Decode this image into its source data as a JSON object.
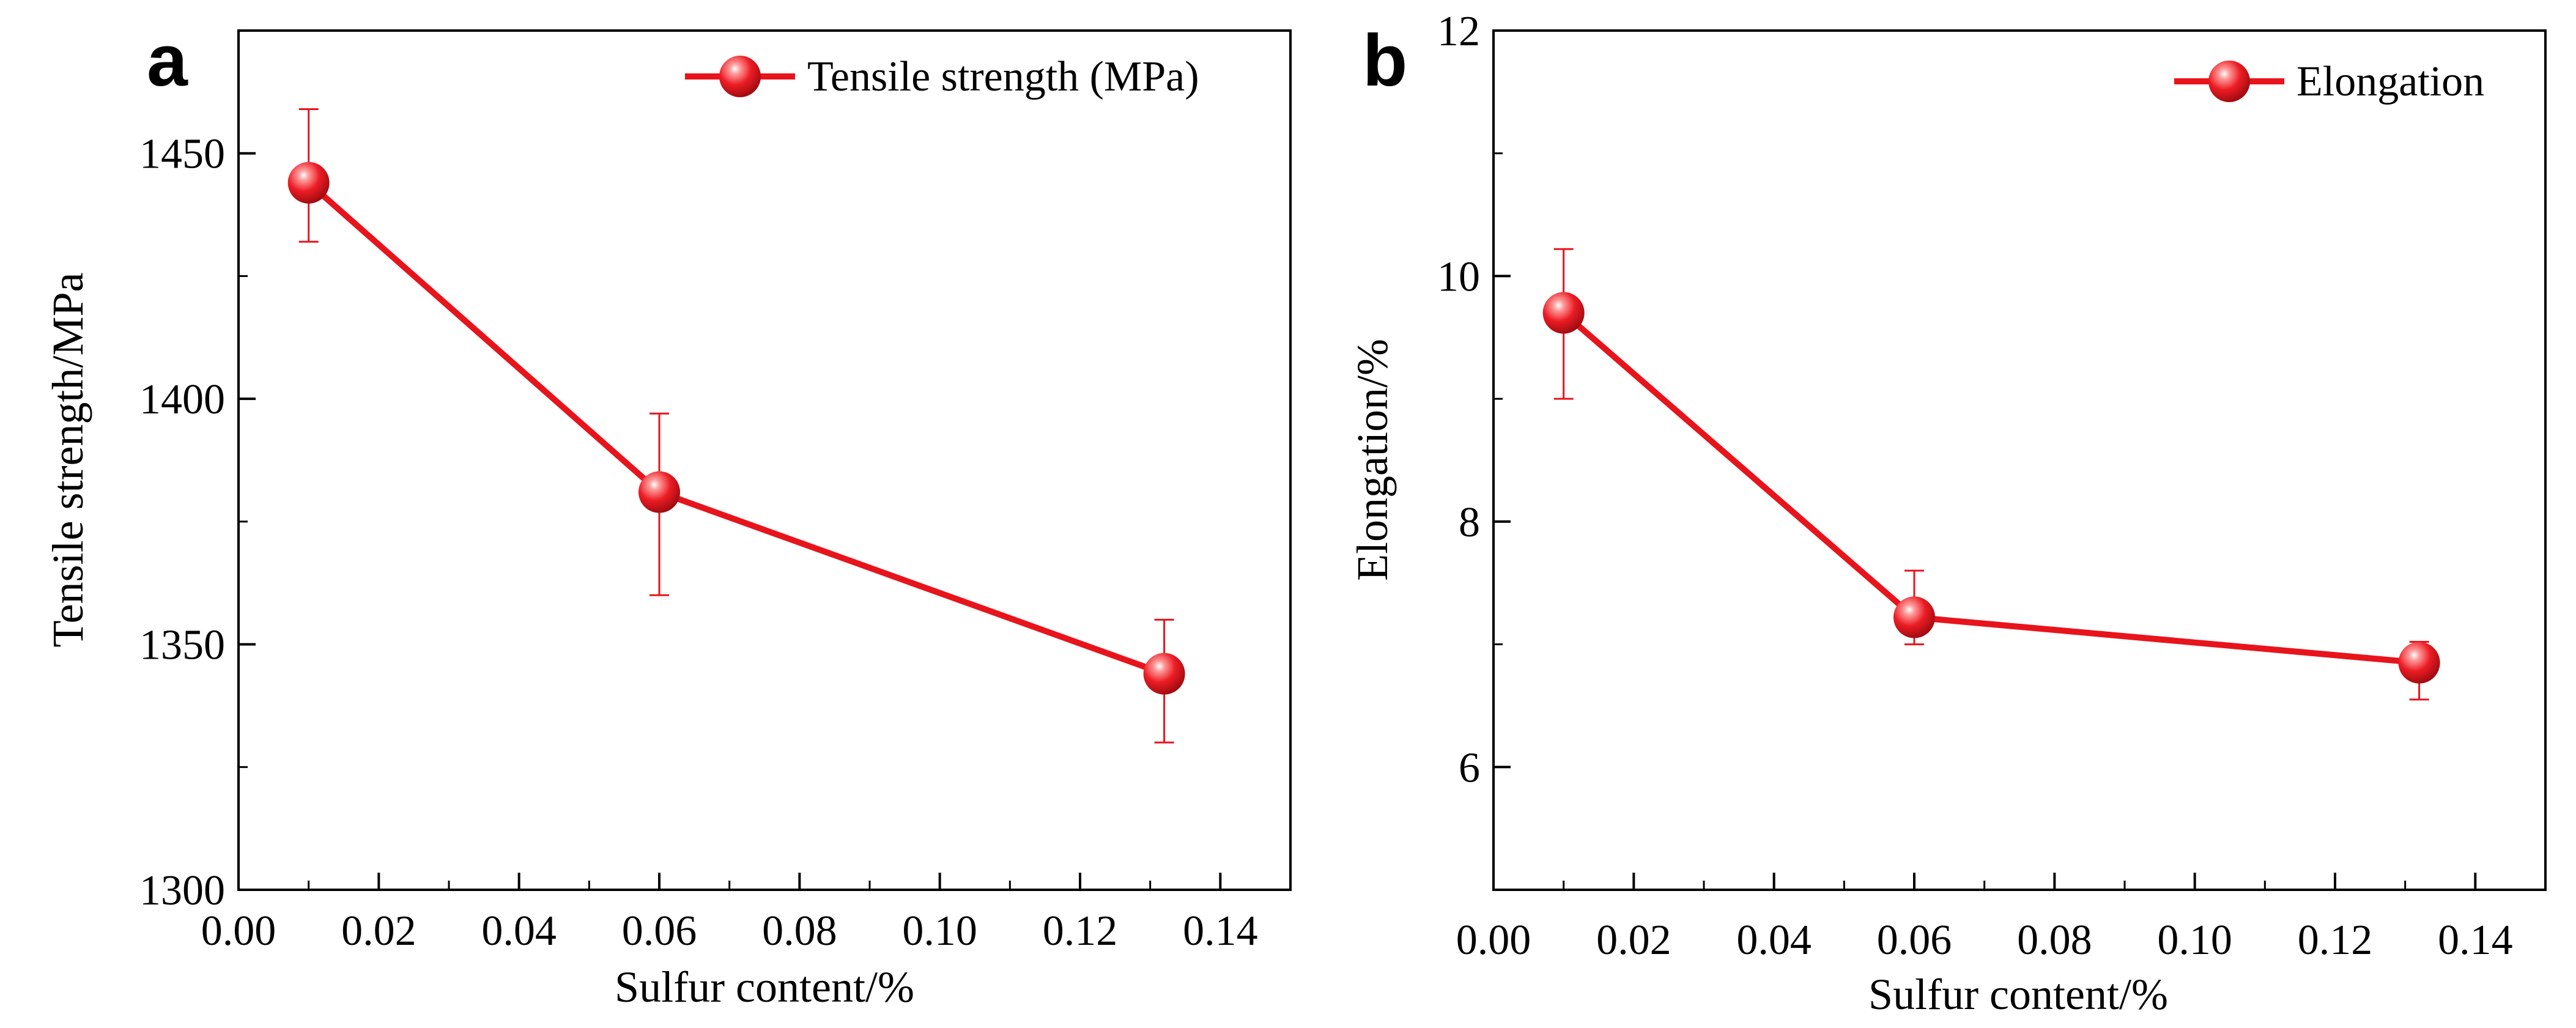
{
  "colors": {
    "series": "#e8141c",
    "errorbar": "#e8141c",
    "axis": "#000000",
    "background": "#ffffff"
  },
  "chart_data": [
    {
      "panel": "a",
      "type": "line",
      "title": "",
      "xlabel": "Sulfur content/%",
      "ylabel": "Tensile strength/MPa",
      "xlim": [
        0.0,
        0.15
      ],
      "ylim": [
        1300,
        1475
      ],
      "xticks": [
        0.0,
        0.02,
        0.04,
        0.06,
        0.08,
        0.1,
        0.12,
        0.14
      ],
      "xtick_labels": [
        "0.00",
        "0.02",
        "0.04",
        "0.06",
        "0.08",
        "0.10",
        "0.12",
        "0.14"
      ],
      "yticks": [
        1300,
        1350,
        1400,
        1450
      ],
      "ytick_labels": [
        "1300",
        "1350",
        "1400",
        "1450"
      ],
      "legend": {
        "label": "Tensile strength (MPa)",
        "position": "top-right"
      },
      "series": [
        {
          "name": "Tensile strength (MPa)",
          "x": [
            0.01,
            0.06,
            0.132
          ],
          "y": [
            1444,
            1381,
            1344
          ],
          "err_upper": [
            1459,
            1397,
            1355
          ],
          "err_lower": [
            1432,
            1360,
            1330
          ]
        }
      ]
    },
    {
      "panel": "b",
      "type": "line",
      "title": "",
      "xlabel": "Sulfur content/%",
      "ylabel": "Elongation/%",
      "xlim": [
        0.0,
        0.15
      ],
      "ylim": [
        5.0,
        12.0
      ],
      "xticks": [
        0.0,
        0.02,
        0.04,
        0.06,
        0.08,
        0.1,
        0.12,
        0.14
      ],
      "xtick_labels": [
        "0.00",
        "0.02",
        "0.04",
        "0.06",
        "0.08",
        "0.10",
        "0.12",
        "0.14"
      ],
      "yticks": [
        6,
        8,
        10,
        12
      ],
      "ytick_labels": [
        "6",
        "8",
        "10",
        "12"
      ],
      "legend": {
        "label": "Elongation",
        "position": "top-right"
      },
      "series": [
        {
          "name": "Elongation",
          "x": [
            0.01,
            0.06,
            0.132
          ],
          "y": [
            9.7,
            7.22,
            6.85
          ],
          "err_upper": [
            10.22,
            7.6,
            7.02
          ],
          "err_lower": [
            9.0,
            7.0,
            6.55
          ]
        }
      ]
    }
  ]
}
